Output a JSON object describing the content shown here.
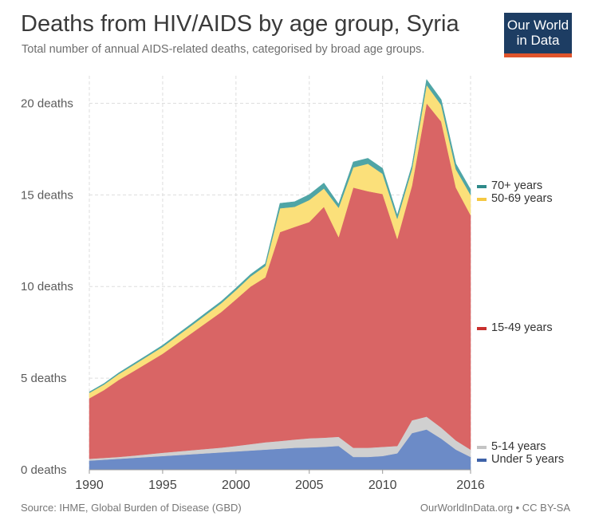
{
  "header": {
    "title": "Deaths from HIV/AIDS by age group, Syria",
    "subtitle": "Total number of annual AIDS-related deaths, categorised by broad age groups.",
    "logo_line1": "Our World",
    "logo_line2": "in Data"
  },
  "footer": {
    "source": "Source: IHME, Global Burden of Disease (GBD)",
    "credit": "OurWorldInData.org • CC BY-SA"
  },
  "chart_data": {
    "type": "area",
    "stacked": true,
    "grid": true,
    "legend_position": "right",
    "x": [
      1990,
      1991,
      1992,
      1993,
      1994,
      1995,
      1996,
      1997,
      1998,
      1999,
      2000,
      2001,
      2002,
      2003,
      2004,
      2005,
      2006,
      2007,
      2008,
      2009,
      2010,
      2011,
      2012,
      2013,
      2014,
      2015,
      2016
    ],
    "xlim": [
      1990,
      2016
    ],
    "ylim": [
      0,
      21.5
    ],
    "x_ticks": [
      "1990",
      "1995",
      "2000",
      "2005",
      "2010",
      "2016"
    ],
    "x_tick_values": [
      1990,
      1995,
      2000,
      2005,
      2010,
      2016
    ],
    "y_ticks": [
      "0 deaths",
      "5 deaths",
      "10 deaths",
      "15 deaths",
      "20 deaths"
    ],
    "y_tick_values": [
      0,
      5,
      10,
      15,
      20
    ],
    "series": [
      {
        "name": "Under 5 years",
        "color": "#6c8bc7",
        "values": [
          0.5,
          0.55,
          0.6,
          0.65,
          0.7,
          0.75,
          0.8,
          0.85,
          0.9,
          0.95,
          1.0,
          1.05,
          1.1,
          1.15,
          1.2,
          1.22,
          1.25,
          1.3,
          0.7,
          0.7,
          0.75,
          0.9,
          2.0,
          2.2,
          1.7,
          1.1,
          0.7
        ]
      },
      {
        "name": "5-14 years",
        "color": "#d0d0d0",
        "values": [
          0.1,
          0.1,
          0.1,
          0.12,
          0.15,
          0.18,
          0.2,
          0.22,
          0.24,
          0.26,
          0.3,
          0.35,
          0.4,
          0.42,
          0.45,
          0.5,
          0.5,
          0.5,
          0.5,
          0.5,
          0.5,
          0.4,
          0.7,
          0.7,
          0.6,
          0.5,
          0.4
        ]
      },
      {
        "name": "15-49 years",
        "color": "#d96565",
        "values": [
          3.3,
          3.7,
          4.2,
          4.6,
          5.0,
          5.4,
          5.9,
          6.4,
          6.9,
          7.4,
          8.0,
          8.6,
          9.0,
          11.4,
          11.6,
          11.8,
          12.6,
          10.9,
          14.2,
          14.0,
          13.8,
          11.3,
          12.8,
          17.1,
          16.7,
          13.8,
          12.8
        ]
      },
      {
        "name": "50-69 years",
        "color": "#fbe07a",
        "values": [
          0.3,
          0.3,
          0.32,
          0.34,
          0.36,
          0.38,
          0.4,
          0.42,
          0.45,
          0.48,
          0.5,
          0.55,
          0.62,
          1.3,
          1.1,
          1.2,
          1.0,
          1.6,
          1.1,
          1.5,
          1.1,
          1.1,
          0.9,
          1.0,
          0.9,
          1.0,
          1.1
        ]
      },
      {
        "name": "70+ years",
        "color": "#4fa5a6",
        "values": [
          0.05,
          0.06,
          0.07,
          0.08,
          0.08,
          0.09,
          0.1,
          0.1,
          0.11,
          0.11,
          0.12,
          0.12,
          0.13,
          0.27,
          0.28,
          0.3,
          0.3,
          0.2,
          0.3,
          0.3,
          0.3,
          0.2,
          0.2,
          0.3,
          0.3,
          0.3,
          0.3
        ]
      }
    ],
    "legend": [
      {
        "label": "70+ years",
        "color": "#2e8a8a"
      },
      {
        "label": "50-69 years",
        "color": "#f5c842"
      },
      {
        "label": "15-49 years",
        "color": "#c8302e"
      },
      {
        "label": "5-14 years",
        "color": "#c4c4c4"
      },
      {
        "label": "Under 5 years",
        "color": "#3e62a8"
      }
    ]
  }
}
